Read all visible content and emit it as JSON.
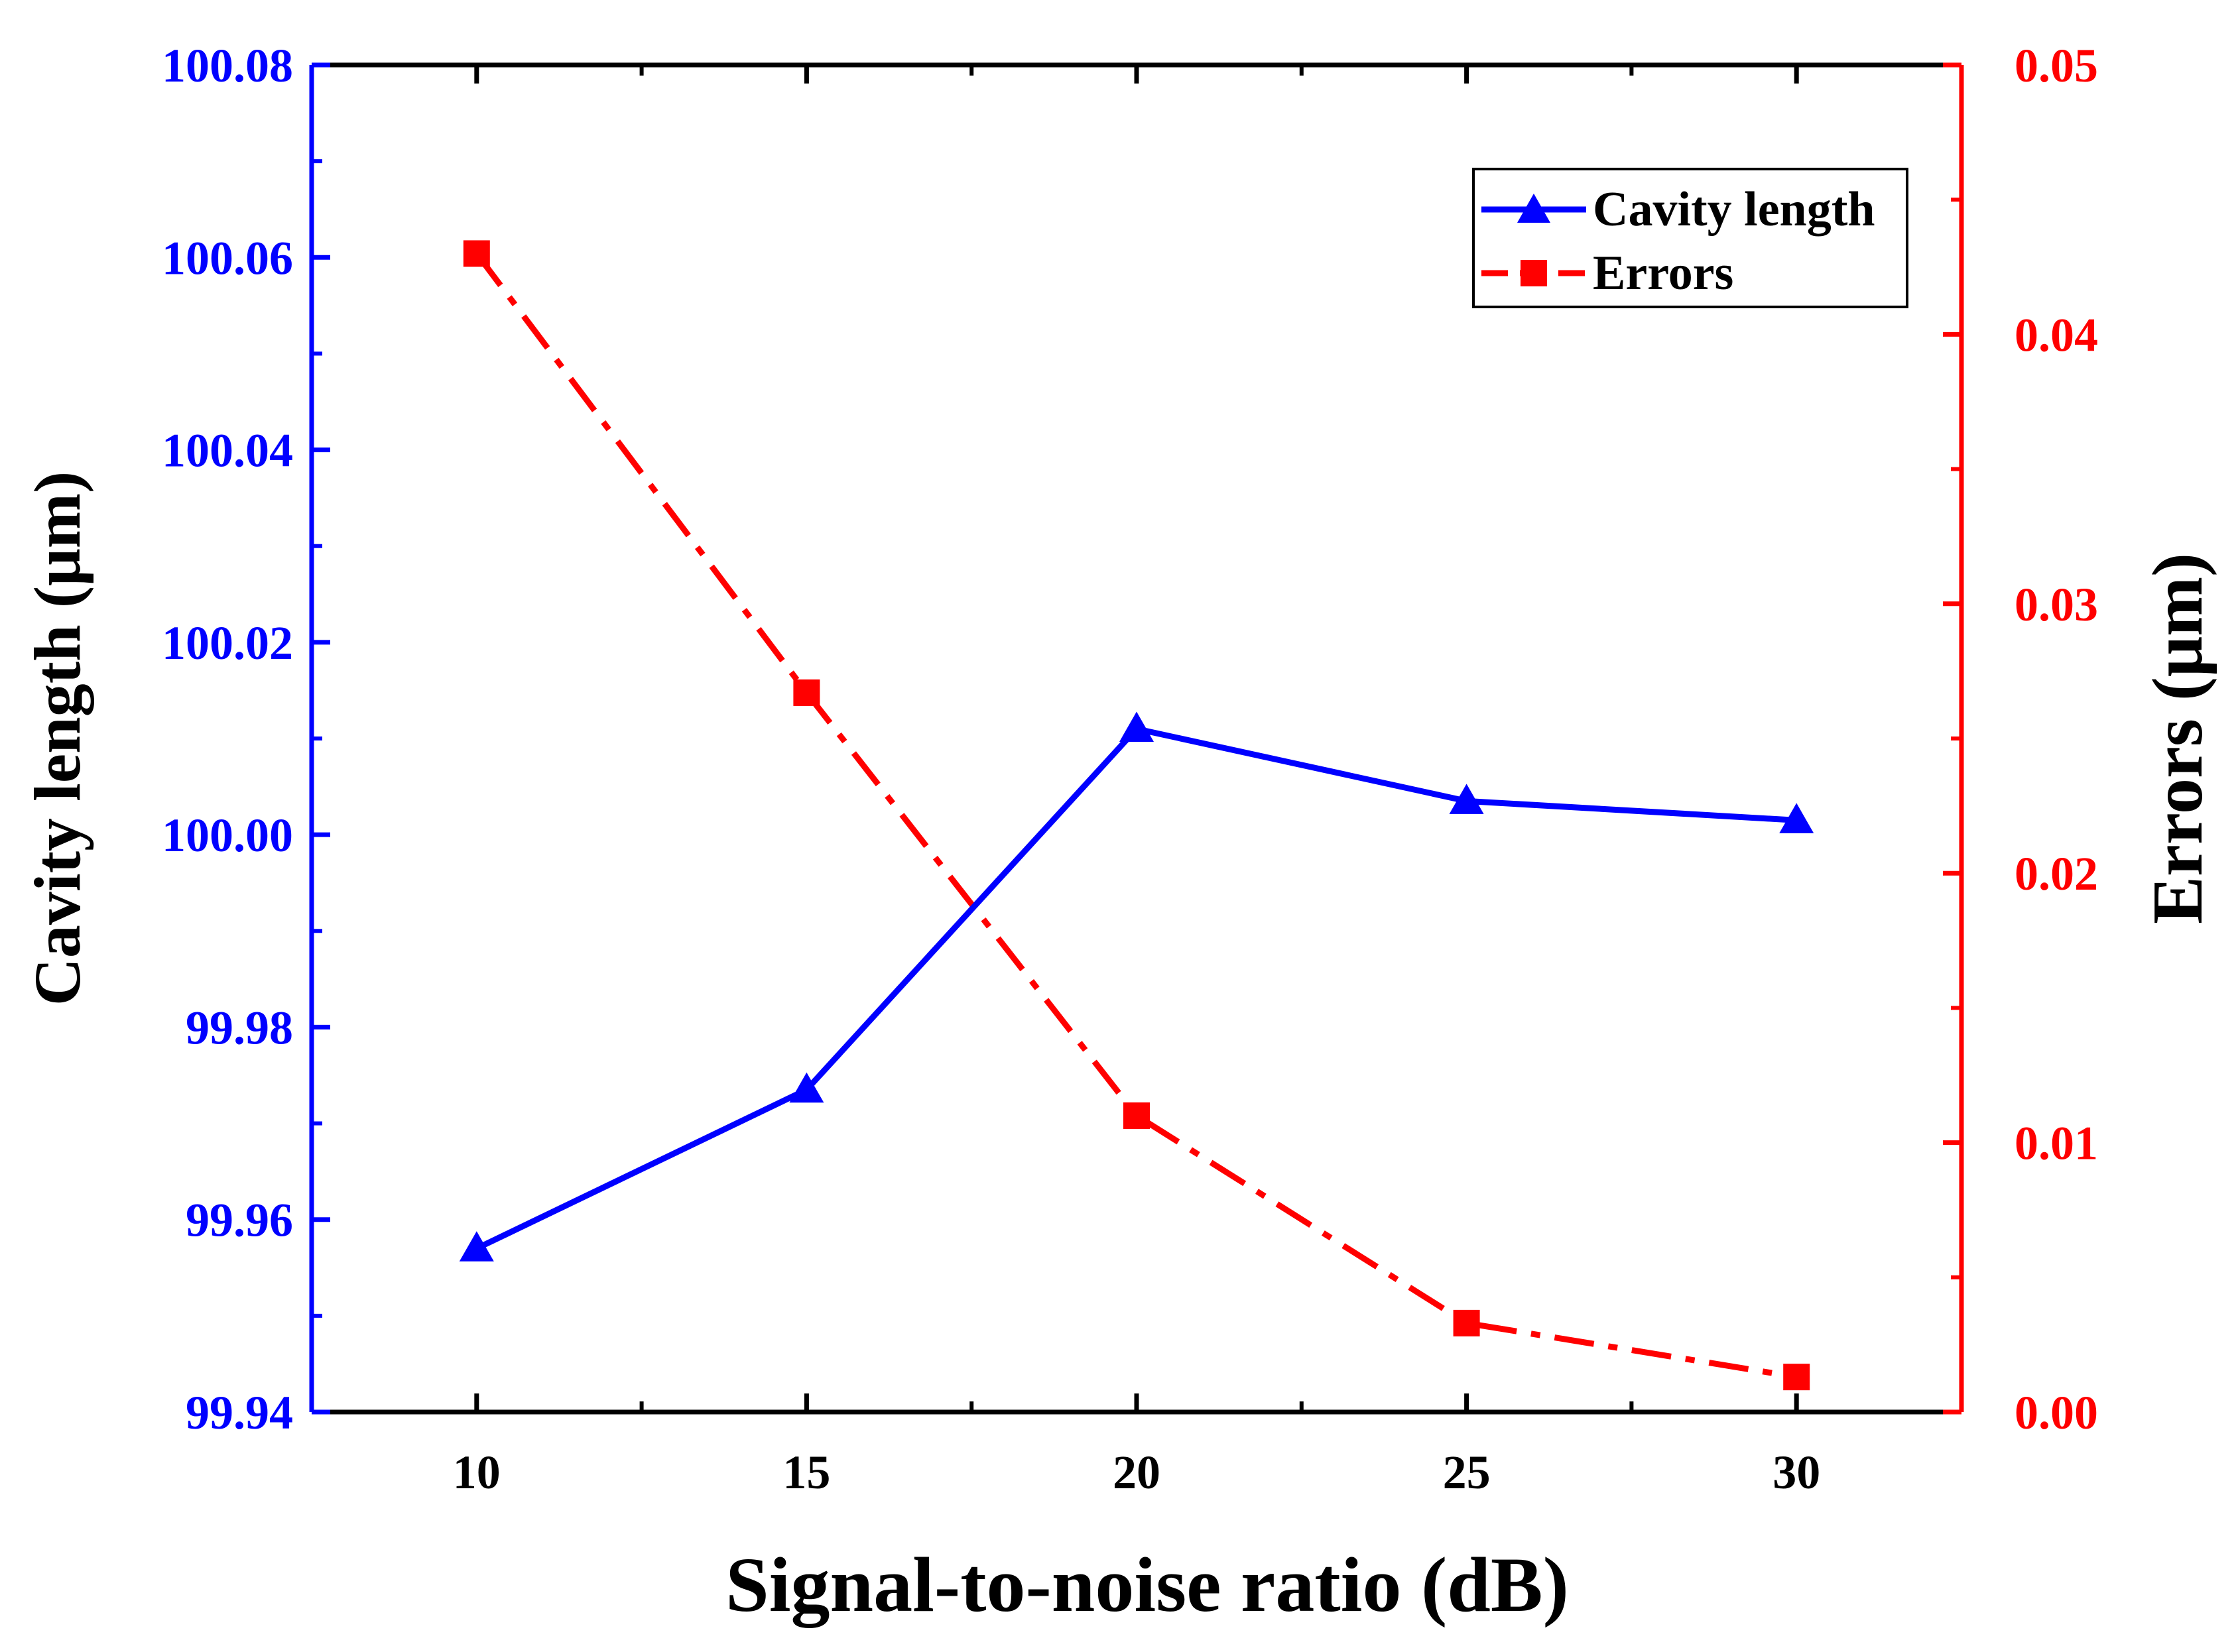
{
  "colors": {
    "cavity": "#0000ff",
    "errors": "#ff0000",
    "axis": "#000000"
  },
  "chart_data": {
    "type": "line",
    "x": [
      10,
      15,
      20,
      25,
      30
    ],
    "xlabel": "Signal-to-noise ratio (dB)",
    "xlim": [
      7.5,
      32.5
    ],
    "xticks": [
      "10",
      "15",
      "20",
      "25",
      "30"
    ],
    "series": [
      {
        "name": "Cavity length",
        "axis": "left",
        "marker": "triangle",
        "line_style": "solid",
        "values": [
          99.957,
          99.9735,
          100.011,
          100.0035,
          100.0015
        ]
      },
      {
        "name": "Errors",
        "axis": "right",
        "marker": "square",
        "line_style": "dash-dot",
        "values": [
          0.043,
          0.0267,
          0.011,
          0.0033,
          0.0013
        ]
      }
    ],
    "ylabel_left": "Cavity length (μm)",
    "ylim_left": [
      99.94,
      100.08
    ],
    "yticks_left": [
      "99.94",
      "99.96",
      "99.98",
      "100.00",
      "100.02",
      "100.04",
      "100.06",
      "100.08"
    ],
    "ylabel_right": "Errors (μm)",
    "ylim_right": [
      0,
      0.05
    ],
    "yticks_right": [
      "0.00",
      "0.01",
      "0.02",
      "0.03",
      "0.04",
      "0.05"
    ],
    "legend_position": "top-right"
  }
}
